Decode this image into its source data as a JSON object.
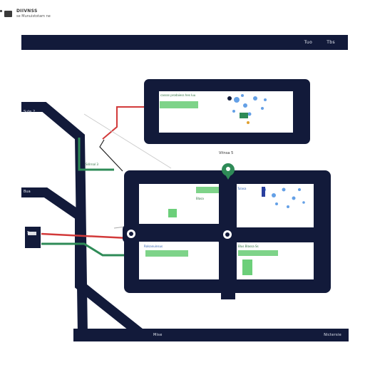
{
  "brand": {
    "name": "DIIVNSS",
    "tagline": "se Munuistotam ne"
  },
  "header": {
    "right_labels": [
      "Tuo",
      "Tbs"
    ]
  },
  "footer": {
    "left_label": "Mise",
    "right_label": "Nictersie"
  },
  "nodes": {
    "top_left_label": "Sute 2",
    "mid_left_label": "Bua",
    "lower_left_label": "Sus",
    "connector_label": "Vitnsa 5",
    "upper_panel_caption": "cassss prodaiess hes luu",
    "upper_panel_status": "Srilrnal 3",
    "grid_tl_caption": "Blasa",
    "grid_tr_caption": "Tulasa",
    "grid_bl_caption": "Rolsanuinsus",
    "grid_br_caption": "Blus Blassa Ss"
  },
  "colors": {
    "navy": "#121a3a",
    "green": "#2e8b57",
    "green_light": "#7ed389",
    "red": "#d23a3a",
    "blue": "#4a90e2"
  }
}
